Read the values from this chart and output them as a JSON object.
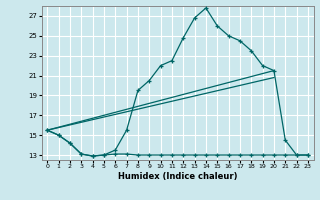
{
  "xlabel": "Humidex (Indice chaleur)",
  "bg_color": "#cce8ed",
  "grid_color": "#ffffff",
  "line_color": "#006666",
  "xlim": [
    -0.5,
    23.5
  ],
  "ylim": [
    12.5,
    28.0
  ],
  "xticks": [
    0,
    1,
    2,
    3,
    4,
    5,
    6,
    7,
    8,
    9,
    10,
    11,
    12,
    13,
    14,
    15,
    16,
    17,
    18,
    19,
    20,
    21,
    22,
    23
  ],
  "yticks": [
    13,
    15,
    17,
    19,
    21,
    23,
    25,
    27
  ],
  "line1_x": [
    0,
    1,
    2,
    3,
    4,
    5,
    6,
    7,
    8,
    9,
    10,
    11,
    12,
    13,
    14,
    15,
    16,
    17,
    18,
    19,
    20,
    21,
    22,
    23
  ],
  "line1_y": [
    15.5,
    15.0,
    14.2,
    13.1,
    12.9,
    13.0,
    13.1,
    13.1,
    13.0,
    13.0,
    13.0,
    13.0,
    13.0,
    13.0,
    13.0,
    13.0,
    13.0,
    13.0,
    13.0,
    13.0,
    13.0,
    13.0,
    13.0,
    13.0
  ],
  "line2_x": [
    0,
    1,
    2,
    3,
    4,
    5,
    6,
    7,
    8,
    9,
    10,
    11,
    12,
    13,
    14,
    15,
    16,
    17,
    18,
    19,
    20,
    21,
    22,
    23
  ],
  "line2_y": [
    15.5,
    15.0,
    14.2,
    13.1,
    12.9,
    13.0,
    13.5,
    15.5,
    19.5,
    20.5,
    22.0,
    22.5,
    24.8,
    26.8,
    27.8,
    26.0,
    25.0,
    24.5,
    23.5,
    22.0,
    21.5,
    14.5,
    13.0,
    13.0
  ],
  "line3_x": [
    0,
    20
  ],
  "line3_y": [
    15.5,
    21.5
  ],
  "line4_x": [
    0,
    20
  ],
  "line4_y": [
    15.5,
    20.8
  ]
}
